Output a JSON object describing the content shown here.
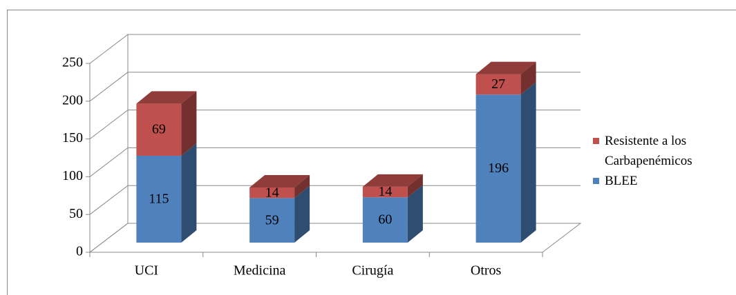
{
  "chart_data": {
    "type": "bar",
    "stacked": true,
    "categories": [
      "UCI",
      "Medicina",
      "Cirugía",
      "Otros"
    ],
    "series": [
      {
        "name": "BLEE",
        "color": "#4f81bd",
        "values": [
          115,
          59,
          60,
          196
        ]
      },
      {
        "name": "Resistente a los Carbapenémicos",
        "color": "#c0504d",
        "values": [
          69,
          14,
          14,
          27
        ]
      }
    ],
    "ylim": [
      0,
      250
    ],
    "yticks": [
      0,
      50,
      100,
      150,
      200,
      250
    ],
    "grid": true,
    "legend": "right"
  }
}
